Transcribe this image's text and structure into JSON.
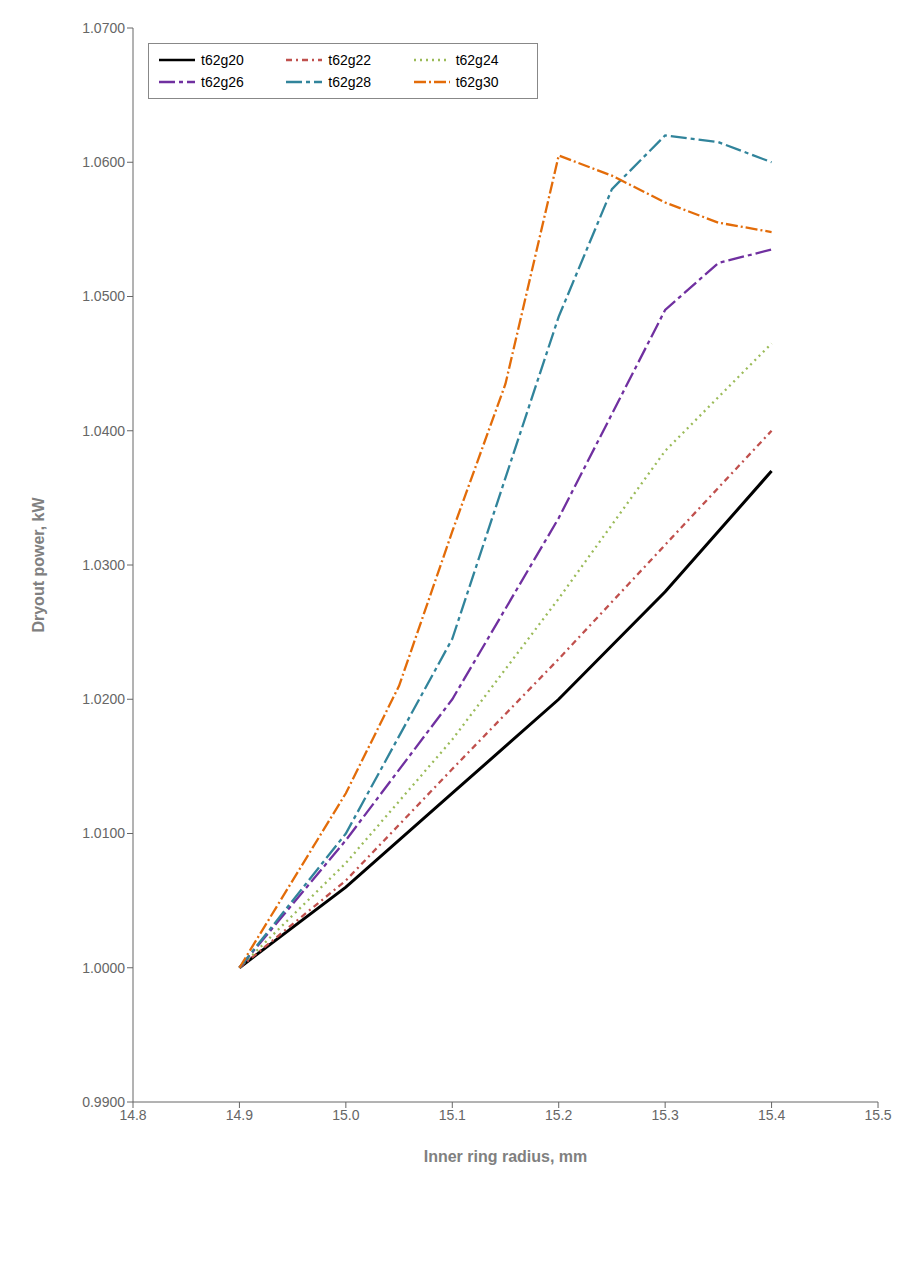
{
  "chart_data": {
    "type": "line",
    "xlabel": "Inner ring radius, mm",
    "ylabel": "Dryout power, kW",
    "xlim": [
      14.8,
      15.5
    ],
    "ylim": [
      0.99,
      1.07
    ],
    "xticks": [
      14.8,
      14.9,
      {
        "value": 15.0,
        "label": "15.0"
      },
      15.1,
      15.2,
      15.3,
      15.4,
      15.5
    ],
    "yticks": [
      {
        "value": 0.99,
        "label": "0.9900"
      },
      {
        "value": 1.0,
        "label": "1.0000"
      },
      {
        "value": 1.01,
        "label": "1.0100"
      },
      {
        "value": 1.02,
        "label": "1.0200"
      },
      {
        "value": 1.03,
        "label": "1.0300"
      },
      {
        "value": 1.04,
        "label": "1.0400"
      },
      {
        "value": 1.05,
        "label": "1.0500"
      },
      {
        "value": 1.06,
        "label": "1.0600"
      },
      {
        "value": 1.07,
        "label": "1.0700"
      }
    ],
    "grid": false,
    "legend": "upper left",
    "series": [
      {
        "name": "t62g20",
        "color": "#000000",
        "line_style": "solid",
        "x": [
          14.9,
          15.0,
          15.1,
          15.2,
          15.3,
          15.4
        ],
        "values": [
          1.0,
          1.006,
          1.013,
          1.02,
          1.028,
          1.037
        ]
      },
      {
        "name": "t62g22",
        "color": "#c0504d",
        "line_style": "dotted_dash",
        "x": [
          14.9,
          15.0,
          15.1,
          15.2,
          15.3,
          15.4
        ],
        "values": [
          1.0,
          1.0065,
          1.0148,
          1.023,
          1.0315,
          1.04
        ]
      },
      {
        "name": "t62g24",
        "color": "#9bbb59",
        "line_style": "dotted",
        "x": [
          14.9,
          15.0,
          15.1,
          15.2,
          15.3,
          15.4
        ],
        "values": [
          1.0,
          1.0078,
          1.017,
          1.0275,
          1.0385,
          1.0465
        ]
      },
      {
        "name": "t62g26",
        "color": "#7030a0",
        "line_style": "long_dash_dot",
        "x": [
          14.9,
          15.0,
          15.1,
          15.2,
          15.3,
          15.35,
          15.4
        ],
        "values": [
          1.0,
          1.0095,
          1.02,
          1.0335,
          1.049,
          1.0525,
          1.0535
        ]
      },
      {
        "name": "t62g28",
        "color": "#31849b",
        "line_style": "long_dash_dot",
        "x": [
          14.9,
          15.0,
          15.1,
          15.2,
          15.25,
          15.3,
          15.35,
          15.4
        ],
        "values": [
          1.0,
          1.01,
          1.0245,
          1.0485,
          1.058,
          1.062,
          1.0615,
          1.06
        ]
      },
      {
        "name": "t62g30",
        "color": "#e36c09",
        "line_style": "dash_dot_dot",
        "x": [
          14.9,
          15.0,
          15.05,
          15.1,
          15.15,
          15.2,
          15.25,
          15.3,
          15.35,
          15.4
        ],
        "values": [
          1.0,
          1.013,
          1.021,
          1.0325,
          1.0435,
          1.0605,
          1.059,
          1.057,
          1.0555,
          1.0548
        ]
      }
    ]
  }
}
